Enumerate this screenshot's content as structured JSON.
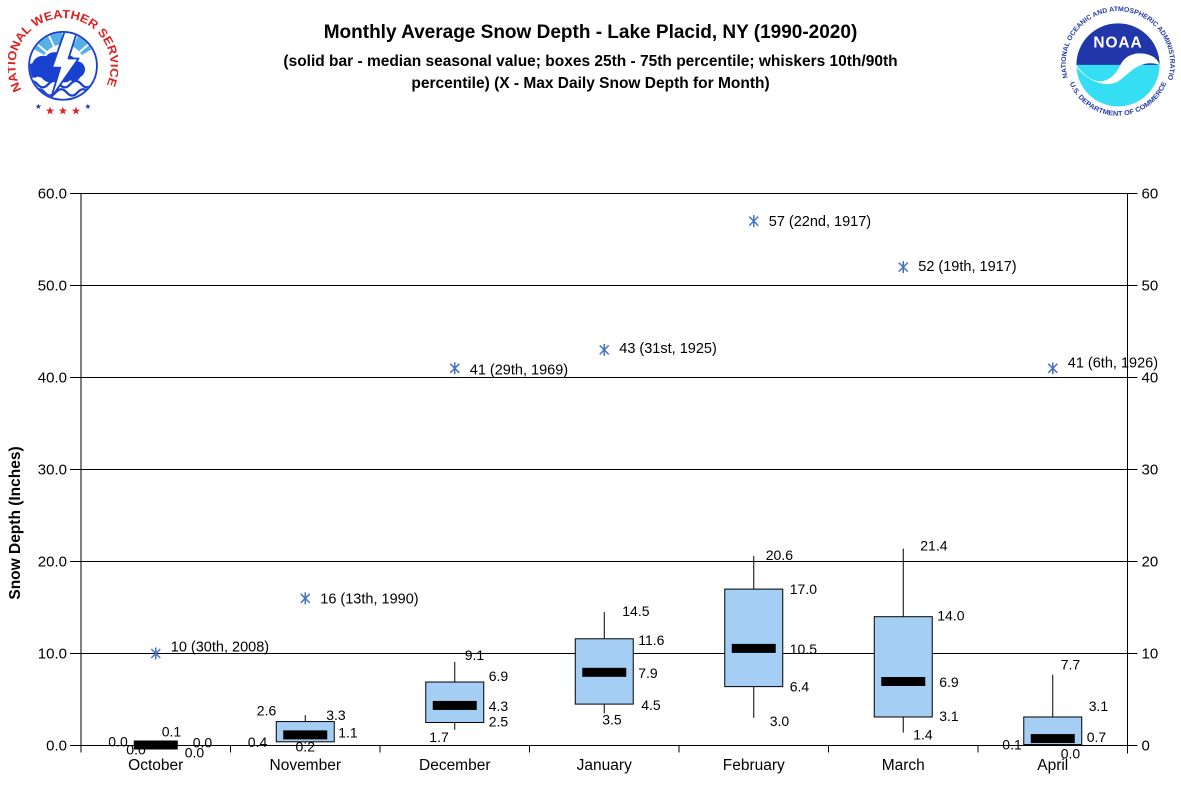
{
  "header": {
    "title": "Monthly Average Snow Depth - Lake Placid, NY (1990-2020)",
    "subtitle_line1": "(solid bar - median seasonal value; boxes 25th - 75th percentile; whiskers 10th/90th",
    "subtitle_line2": "percentile) (X - Max Daily Snow Depth for Month)"
  },
  "logos": {
    "nws": {
      "ring_text": "NATIONAL WEATHER SERVICE",
      "stars": "★ ★ ★"
    },
    "noaa": {
      "acronym": "NOAA",
      "top_text": "NATIONAL OCEANIC AND ATMOSPHERIC ADMINISTRATION",
      "bottom_text": "U.S. DEPARTMENT OF COMMERCE"
    }
  },
  "chart_data": {
    "type": "box",
    "title": "Monthly Average Snow Depth - Lake Placid, NY (1990-2020)",
    "ylabel": "Snow Depth (Inches)",
    "ylim": [
      0,
      60
    ],
    "grid": true,
    "legend_position": "none",
    "yticks_left": [
      "0.0",
      "10.0",
      "20.0",
      "30.0",
      "40.0",
      "50.0",
      "60.0"
    ],
    "yticks_right": [
      "0",
      "10",
      "20",
      "30",
      "40",
      "50",
      "60"
    ],
    "box_fill": "#A5CEF4",
    "median_color": "#000000",
    "marker_color": "#4472C4",
    "categories": [
      "October",
      "November",
      "December",
      "January",
      "February",
      "March",
      "April"
    ],
    "months": [
      {
        "label": "October",
        "p10": 0.0,
        "p25": 0.0,
        "median": 0.0,
        "p75": 0.0,
        "p90": 0.1,
        "value_labels": {
          "p10": "0.0",
          "p25": "0.0",
          "median": "0.0",
          "p75": "0.0",
          "p90": "0.1"
        },
        "max_marker": {
          "value": 10,
          "label": "10 (30th, 2008)"
        }
      },
      {
        "label": "November",
        "p10": 0.2,
        "p25": 0.4,
        "median": 1.1,
        "p75": 2.6,
        "p90": 3.3,
        "value_labels": {
          "p10": "0.2",
          "p25": "0.4",
          "median": "1.1",
          "p75": "2.6",
          "p90": "3.3"
        },
        "max_marker": {
          "value": 16,
          "label": "16 (13th, 1990)"
        }
      },
      {
        "label": "December",
        "p10": 1.7,
        "p25": 2.5,
        "median": 4.3,
        "p75": 6.9,
        "p90": 9.1,
        "value_labels": {
          "p10": "1.7",
          "p25": "2.5",
          "median": "4.3",
          "p75": "6.9",
          "p90": "9.1"
        },
        "max_marker": {
          "value": 41,
          "label": "41 (29th, 1969)"
        }
      },
      {
        "label": "January",
        "p10": 3.5,
        "p25": 4.5,
        "median": 7.9,
        "p75": 11.6,
        "p90": 14.5,
        "value_labels": {
          "p10": "3.5",
          "p25": "4.5",
          "median": "7.9",
          "p75": "11.6",
          "p90": "14.5"
        },
        "max_marker": {
          "value": 43,
          "label": "43 (31st, 1925)"
        }
      },
      {
        "label": "February",
        "p10": 3.0,
        "p25": 6.4,
        "median": 10.5,
        "p75": 17.0,
        "p90": 20.6,
        "value_labels": {
          "p10": "3.0",
          "p25": "6.4",
          "median": "10.5",
          "p75": "17.0",
          "p90": "20.6"
        },
        "max_marker": {
          "value": 57,
          "label": "57 (22nd, 1917)"
        }
      },
      {
        "label": "March",
        "p10": 1.4,
        "p25": 3.1,
        "median": 6.9,
        "p75": 14.0,
        "p90": 21.4,
        "value_labels": {
          "p10": "1.4",
          "p25": "3.1",
          "median": "6.9",
          "p75": "14.0",
          "p90": "21.4"
        },
        "max_marker": {
          "value": 52,
          "label": "52 (19th, 1917)"
        }
      },
      {
        "label": "April",
        "p10": 0.0,
        "p25": 0.1,
        "median": 0.7,
        "p75": 3.1,
        "p90": 7.7,
        "value_labels": {
          "p10": "0.0",
          "p25": "0.1",
          "median": "0.7",
          "p75": "3.1",
          "p90": "7.7"
        },
        "max_marker": {
          "value": 41,
          "label": "41 (6th, 1926)"
        }
      }
    ]
  }
}
